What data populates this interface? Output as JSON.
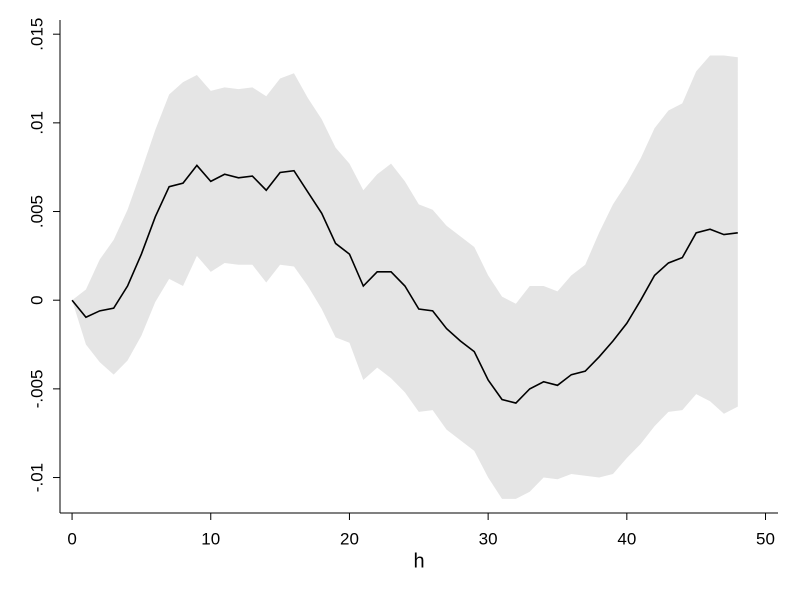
{
  "chart_data": {
    "type": "line",
    "xlabel": "h",
    "x": [
      0,
      1,
      2,
      3,
      4,
      5,
      6,
      7,
      8,
      9,
      10,
      11,
      12,
      13,
      14,
      15,
      16,
      17,
      18,
      19,
      20,
      21,
      22,
      23,
      24,
      25,
      26,
      27,
      28,
      29,
      30,
      31,
      32,
      33,
      34,
      35,
      36,
      37,
      38,
      39,
      40,
      41,
      42,
      43,
      44,
      45,
      46,
      47,
      48
    ],
    "series": [
      {
        "color": "#000000",
        "band_color": "#e5e5e5",
        "values": [
          0,
          -0.00096,
          -0.0006,
          -0.00045,
          0.0008,
          0.0026,
          0.0047,
          0.0064,
          0.0066,
          0.0076,
          0.0067,
          0.0071,
          0.0069,
          0.007,
          0.0062,
          0.0072,
          0.0073,
          0.0061,
          0.0049,
          0.0032,
          0.0026,
          0.0008,
          0.0016,
          0.0016,
          0.0008,
          -0.0005,
          -0.0006,
          -0.0016,
          -0.0023,
          -0.0029,
          -0.0045,
          -0.0056,
          -0.0058,
          -0.005,
          -0.0046,
          -0.0048,
          -0.0042,
          -0.004,
          -0.0032,
          -0.0023,
          -0.0013,
          0,
          0.0014,
          0.0021,
          0.0024,
          0.0038,
          0.004,
          0.0037,
          0.0038
        ],
        "upper": [
          0,
          0.0006,
          0.0023,
          0.0034,
          0.0051,
          0.0073,
          0.0096,
          0.0116,
          0.0123,
          0.0127,
          0.0118,
          0.012,
          0.0119,
          0.012,
          0.0115,
          0.0125,
          0.0128,
          0.0114,
          0.0102,
          0.0086,
          0.0077,
          0.0062,
          0.0071,
          0.0077,
          0.0067,
          0.0054,
          0.0051,
          0.0042,
          0.0036,
          0.003,
          0.0014,
          0.0002,
          -0.0002,
          0.0008,
          0.0008,
          0.0005,
          0.0014,
          0.002,
          0.0038,
          0.0054,
          0.0066,
          0.008,
          0.0097,
          0.0107,
          0.0111,
          0.0129,
          0.0138,
          0.0138,
          0.0137
        ],
        "lower": [
          0,
          -0.0025,
          -0.0035,
          -0.0042,
          -0.0034,
          -0.002,
          -0.0001,
          0.0012,
          0.0008,
          0.0025,
          0.0016,
          0.0021,
          0.002,
          0.002,
          0.001,
          0.002,
          0.0019,
          0.0008,
          -0.0005,
          -0.0021,
          -0.0024,
          -0.0045,
          -0.0038,
          -0.0044,
          -0.0052,
          -0.0063,
          -0.0062,
          -0.0073,
          -0.0079,
          -0.0085,
          -0.01,
          -0.0112,
          -0.0112,
          -0.0108,
          -0.01,
          -0.0101,
          -0.0098,
          -0.0099,
          -0.01,
          -0.0098,
          -0.0089,
          -0.0081,
          -0.0071,
          -0.0063,
          -0.0062,
          -0.0053,
          -0.0057,
          -0.0064,
          -0.006
        ]
      }
    ],
    "xlim": [
      -0.87,
      50.9
    ],
    "xticks": [
      0,
      10,
      20,
      30,
      40,
      50
    ],
    "ylim": [
      -0.012,
      0.0158
    ],
    "yticks": [
      {
        "value": -0.01,
        "label": "-.01"
      },
      {
        "value": -0.005,
        "label": "-.005"
      },
      0,
      {
        "value": 0.005,
        "label": ".005"
      },
      {
        "value": 0.01,
        "label": ".01"
      },
      {
        "value": 0.015,
        "label": ".015"
      }
    ],
    "grid": false
  }
}
